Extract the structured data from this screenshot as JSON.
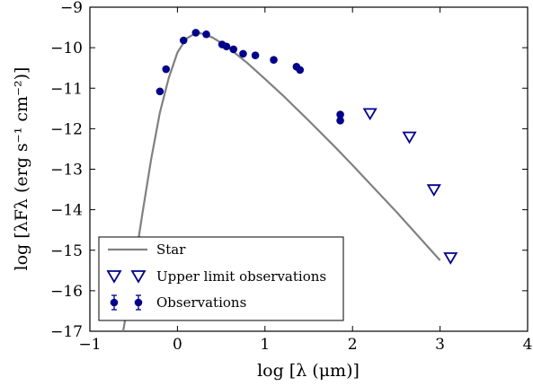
{
  "chart_data": {
    "type": "scatter",
    "xlim": [
      -1,
      4
    ],
    "ylim": [
      -17,
      -9
    ],
    "x_ticks": [
      -1,
      0,
      1,
      2,
      3,
      4
    ],
    "y_ticks": [
      -17,
      -16,
      -15,
      -14,
      -13,
      -12,
      -11,
      -10,
      -9
    ],
    "x_tick_labels": [
      "−1",
      "0",
      "1",
      "2",
      "3",
      "4"
    ],
    "y_tick_labels": [
      "−17",
      "−16",
      "−15",
      "−14",
      "−13",
      "−12",
      "−11",
      "−10",
      "−9"
    ],
    "xlabel": "log [λ (μm)]",
    "ylabel": "log [λFλ (erg s⁻¹ cm⁻²)]",
    "grid": false,
    "legend_position": "bottom-left",
    "colors": {
      "star": "#808080",
      "observations": "#00008b",
      "upper_limits": "#00008b"
    },
    "series": [
      {
        "name": "Star",
        "kind": "line",
        "x": [
          -0.62,
          -0.5,
          -0.4,
          -0.3,
          -0.2,
          -0.1,
          0.0,
          0.1,
          0.2,
          0.25,
          0.3,
          0.4,
          0.5,
          0.6,
          0.8,
          1.0,
          1.2,
          1.5,
          1.8,
          2.0,
          2.5,
          3.0
        ],
        "y": [
          -17.0,
          -15.5,
          -14.1,
          -12.75,
          -11.6,
          -10.75,
          -10.12,
          -9.78,
          -9.65,
          -9.64,
          -9.66,
          -9.75,
          -9.88,
          -10.03,
          -10.38,
          -10.77,
          -11.17,
          -11.8,
          -12.45,
          -12.9,
          -14.05,
          -15.25
        ]
      },
      {
        "name": "Upper limit observations",
        "kind": "marker",
        "marker": "triangle-down-open",
        "x": [
          2.2,
          2.65,
          2.93,
          3.12
        ],
        "y": [
          -11.62,
          -12.2,
          -13.5,
          -15.18
        ]
      },
      {
        "name": "Observations",
        "kind": "marker",
        "marker": "circle-filled",
        "x": [
          -0.2,
          -0.13,
          0.07,
          0.21,
          0.33,
          0.51,
          0.56,
          0.64,
          0.75,
          0.89,
          1.1,
          1.36,
          1.4,
          1.86,
          1.86
        ],
        "y": [
          -11.08,
          -10.53,
          -9.82,
          -9.63,
          -9.67,
          -9.92,
          -9.97,
          -10.04,
          -10.15,
          -10.19,
          -10.3,
          -10.47,
          -10.55,
          -11.65,
          -11.8
        ]
      }
    ]
  }
}
